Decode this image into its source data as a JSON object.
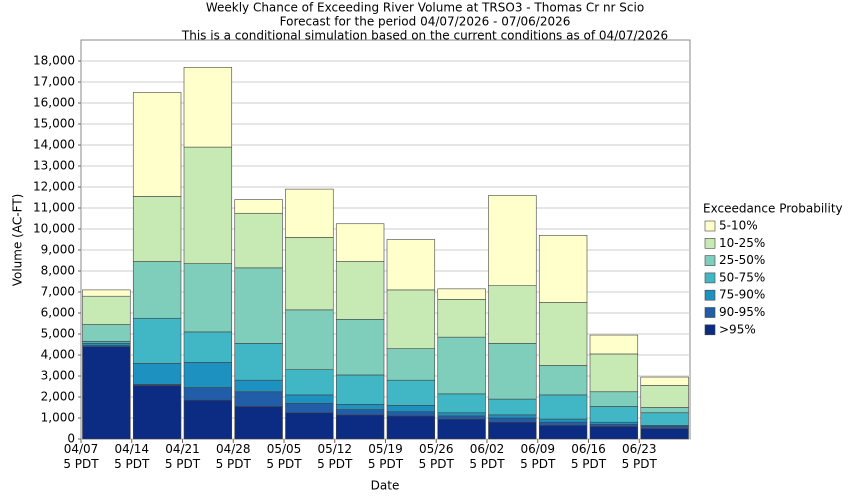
{
  "chart_data": {
    "type": "stacked_bar",
    "title": [
      "Weekly Chance of Exceeding River Volume at TRSO3 - Thomas Cr nr Scio",
      "Forecast for the period 04/07/2026 - 07/06/2026",
      "This is a conditional simulation based on the current conditions as of 04/07/2026"
    ],
    "xlabel": "Date",
    "ylabel": "Volume (AC-FT)",
    "legend_title": "Exceedance Probability",
    "categories": [
      "04/07\n5 PDT",
      "04/14\n5 PDT",
      "04/21\n5 PDT",
      "04/28\n5 PDT",
      "05/05\n5 PDT",
      "05/12\n5 PDT",
      "05/19\n5 PDT",
      "05/26\n5 PDT",
      "06/02\n5 PDT",
      "06/09\n5 PDT",
      "06/16\n5 PDT",
      "06/23\n5 PDT"
    ],
    "series": [
      {
        "name": ">95%",
        "color": "#0c2c84",
        "values": [
          4400,
          2550,
          1850,
          1550,
          1250,
          1150,
          1100,
          950,
          800,
          650,
          600,
          500
        ]
      },
      {
        "name": "90-95%",
        "color": "#225ea8",
        "values": [
          50,
          50,
          600,
          700,
          450,
          250,
          200,
          150,
          200,
          150,
          100,
          100
        ]
      },
      {
        "name": "75-90%",
        "color": "#1d91c0",
        "values": [
          100,
          1000,
          1200,
          550,
          400,
          250,
          300,
          150,
          150,
          150,
          100,
          50
        ]
      },
      {
        "name": "50-75%",
        "color": "#41b6c4",
        "values": [
          100,
          2150,
          1450,
          1750,
          1200,
          1400,
          1200,
          900,
          750,
          1150,
          750,
          600
        ]
      },
      {
        "name": "25-50%",
        "color": "#7fcdbb",
        "values": [
          800,
          2700,
          3250,
          3600,
          2850,
          2650,
          1500,
          2700,
          2650,
          1400,
          700,
          250
        ]
      },
      {
        "name": "10-25%",
        "color": "#c7e9b4",
        "values": [
          1350,
          3100,
          5550,
          2600,
          3450,
          2750,
          2800,
          1800,
          2750,
          3000,
          1800,
          1050
        ]
      },
      {
        "name": "5-10%",
        "color": "#ffffcc",
        "values": [
          300,
          4950,
          3800,
          650,
          2300,
          1800,
          2400,
          500,
          4300,
          3200,
          900,
          400
        ]
      }
    ],
    "ylim": [
      0,
      19000
    ],
    "yticks": [
      0,
      {
        "value": 1000,
        "label": "1,000"
      },
      {
        "value": 2000,
        "label": "2,000"
      },
      {
        "value": 3000,
        "label": "3,000"
      },
      {
        "value": 4000,
        "label": "4,000"
      },
      {
        "value": 5000,
        "label": "5,000"
      },
      {
        "value": 6000,
        "label": "6,000"
      },
      {
        "value": 7000,
        "label": "7,000"
      },
      {
        "value": 8000,
        "label": "8,000"
      },
      {
        "value": 9000,
        "label": "9,000"
      },
      {
        "value": 10000,
        "label": "10,000"
      },
      {
        "value": 11000,
        "label": "11,000"
      },
      {
        "value": 12000,
        "label": "12,000"
      },
      {
        "value": 13000,
        "label": "13,000"
      },
      {
        "value": 14000,
        "label": "14,000"
      },
      {
        "value": 15000,
        "label": "15,000"
      },
      {
        "value": 16000,
        "label": "16,000"
      },
      {
        "value": 17000,
        "label": "17,000"
      },
      {
        "value": 18000,
        "label": "18,000"
      }
    ],
    "grid": true,
    "legend": "right"
  }
}
